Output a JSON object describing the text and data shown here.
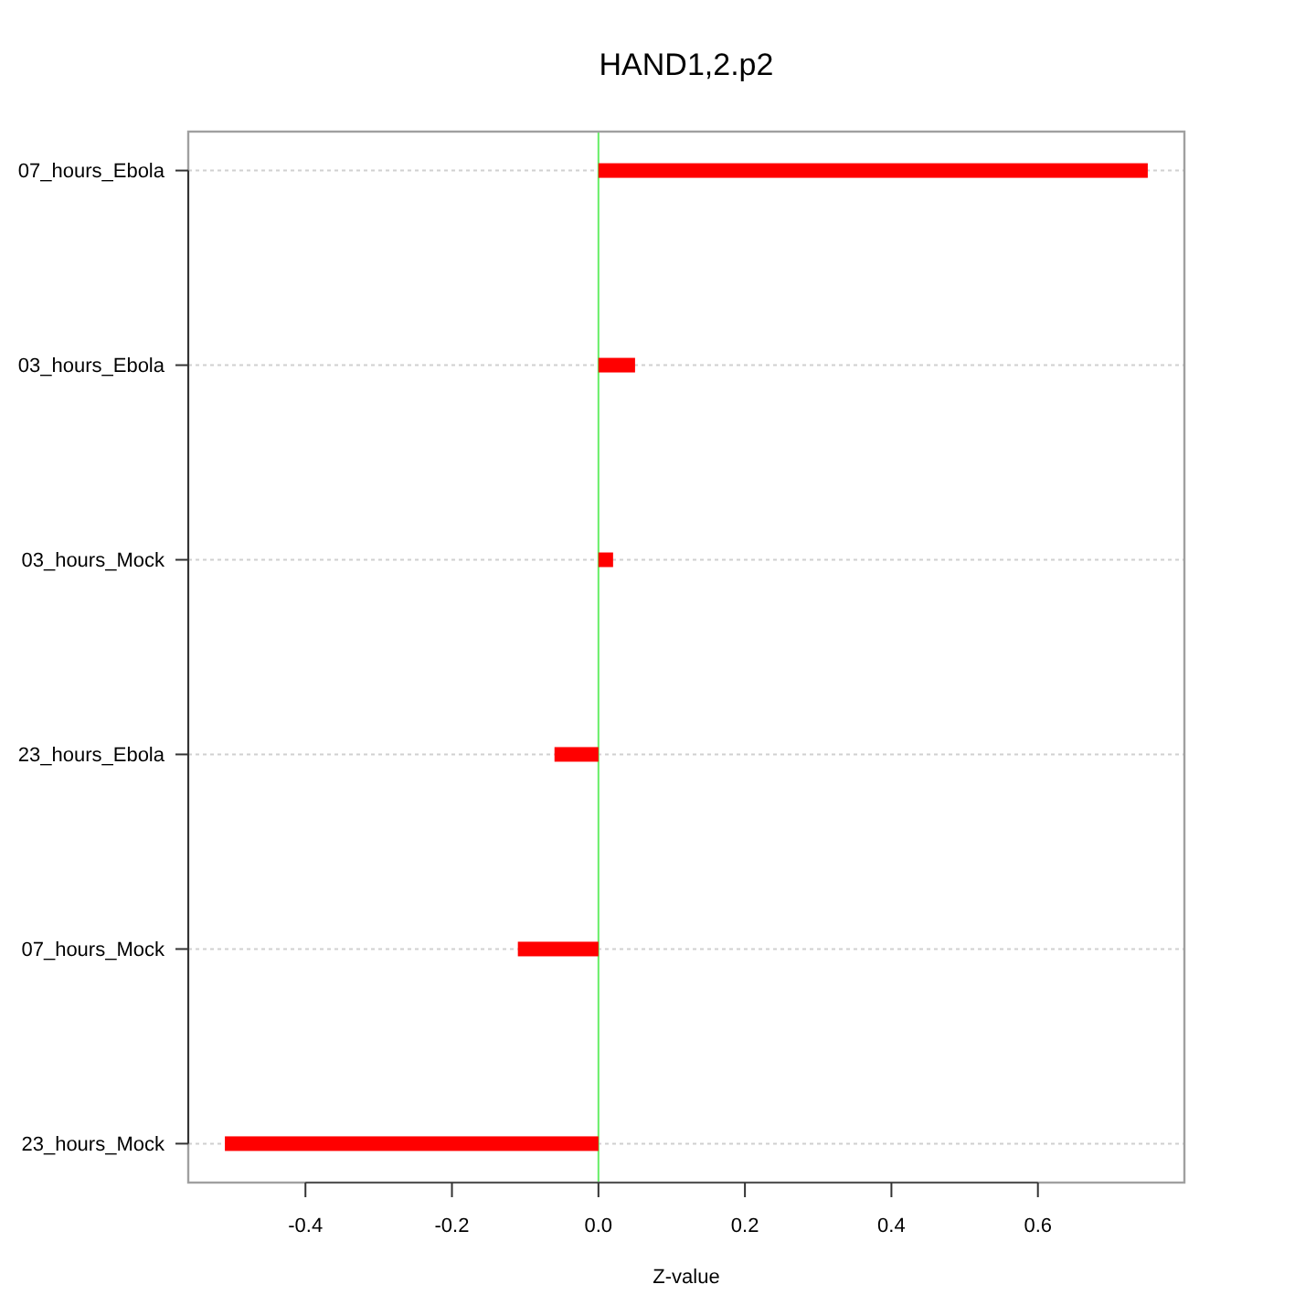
{
  "chart_data": {
    "type": "bar",
    "orientation": "horizontal",
    "title": "HAND1,2.p2",
    "xlabel": "Z-value",
    "categories": [
      "07_hours_Ebola",
      "03_hours_Ebola",
      "03_hours_Mock",
      "23_hours_Ebola",
      "07_hours_Mock",
      "23_hours_Mock"
    ],
    "values": [
      0.75,
      0.05,
      0.02,
      -0.06,
      -0.11,
      -0.51
    ],
    "color": "#ff0000",
    "xlim": [
      -0.56,
      0.8
    ],
    "xticks": [
      -0.4,
      -0.2,
      {
        "value": 0,
        "label": "0.0"
      },
      0.2,
      0.4,
      0.6
    ],
    "grid": "y",
    "ref_lines": [
      {
        "axis": "x",
        "value": 0,
        "color": "#66ee66"
      }
    ]
  }
}
